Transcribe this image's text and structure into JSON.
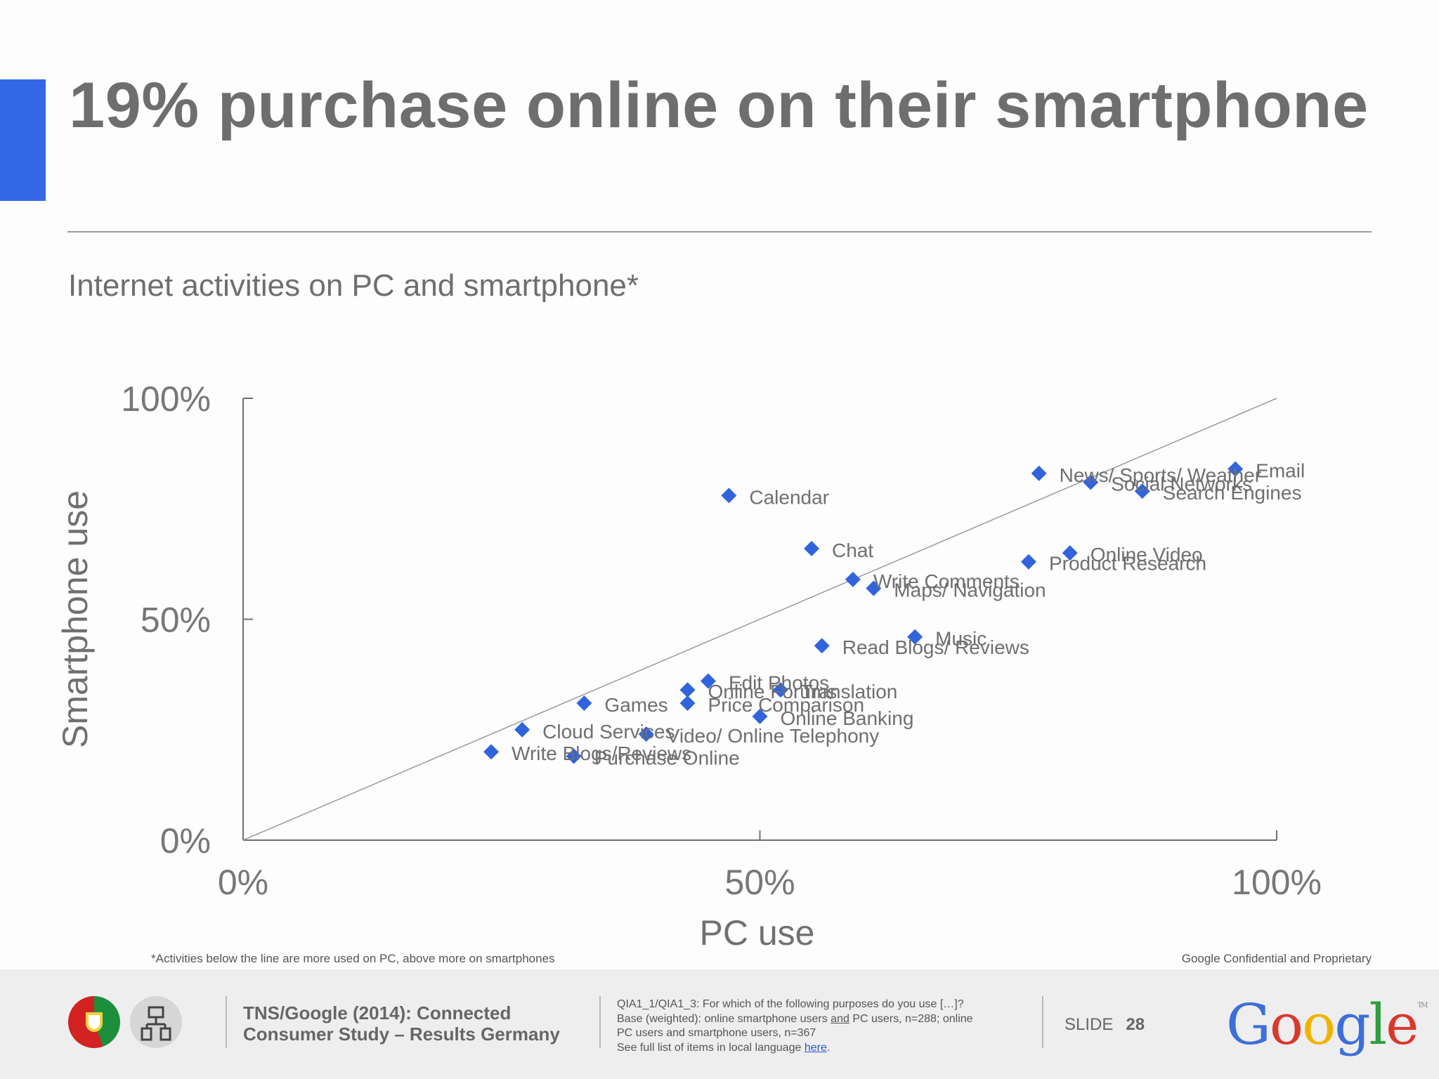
{
  "title": "19% purchase online on their smartphone",
  "subtitle": "Internet activities on PC and smartphone*",
  "footnote": "*Activities below the line are more used on PC, above more on smartphones",
  "confidential": "Google Confidential and Proprietary",
  "footer": {
    "source_line1": "TNS/Google (2014): Connected",
    "source_line2": "Consumer Study – Results Germany",
    "base_line1": "QIA1_1/QIA1_3: For which of the following purposes do you use […]?",
    "base_line2_prefix": "Base (weighted): online smartphone users ",
    "base_line2_underlined": "and",
    "base_line2_suffix": " PC users, n=288; online",
    "base_line3": "PC users and smartphone users, n=367",
    "base_line4_prefix": "See full list of items in local language ",
    "base_link": "here",
    "base_line4_suffix": ".",
    "slide_label": "SLIDE",
    "slide_number": "28",
    "logo_letters": [
      "G",
      "o",
      "o",
      "g",
      "l",
      "e"
    ],
    "logo_colors": [
      "#3c6fd8",
      "#d9392b",
      "#f0b400",
      "#3c6fd8",
      "#2f9e3f",
      "#d9392b"
    ],
    "logo_tm": "TM"
  },
  "chart_data": {
    "type": "scatter",
    "xlabel": "PC use",
    "ylabel": "Smartphone use",
    "xlim": [
      0,
      100
    ],
    "ylim": [
      0,
      100
    ],
    "x_ticks": [
      "0%",
      "50%",
      "100%"
    ],
    "y_ticks": [
      "0%",
      "50%",
      "100%"
    ],
    "reference_line": "diagonal",
    "marker_color": "#3164dc",
    "points": [
      {
        "label": "Email",
        "x": 96,
        "y": 84
      },
      {
        "label": "News/ Sports/ Weather",
        "x": 77,
        "y": 83
      },
      {
        "label": "Social Networks",
        "x": 82,
        "y": 81
      },
      {
        "label": "Search Engines",
        "x": 87,
        "y": 79
      },
      {
        "label": "Calendar",
        "x": 47,
        "y": 78
      },
      {
        "label": "Chat",
        "x": 55,
        "y": 66
      },
      {
        "label": "Online Video",
        "x": 80,
        "y": 65
      },
      {
        "label": "Product Research",
        "x": 76,
        "y": 63
      },
      {
        "label": "Maps/ Navigation",
        "x": 61,
        "y": 57
      },
      {
        "label": "Write Comments",
        "x": 59,
        "y": 59
      },
      {
        "label": "Music",
        "x": 65,
        "y": 46
      },
      {
        "label": "Read Blogs/ Reviews",
        "x": 56,
        "y": 44
      },
      {
        "label": "Edit Photos",
        "x": 45,
        "y": 36
      },
      {
        "label": "Online Forums",
        "x": 43,
        "y": 34
      },
      {
        "label": "Translation",
        "x": 52,
        "y": 34
      },
      {
        "label": "Price Comparison",
        "x": 43,
        "y": 31
      },
      {
        "label": "Games",
        "x": 33,
        "y": 31
      },
      {
        "label": "Online Banking",
        "x": 50,
        "y": 28
      },
      {
        "label": "Video/ Online Telephony",
        "x": 39,
        "y": 24
      },
      {
        "label": "Cloud Services",
        "x": 27,
        "y": 25
      },
      {
        "label": "Write Blogs/Reviews",
        "x": 24,
        "y": 20
      },
      {
        "label": "Purchase Online",
        "x": 32,
        "y": 19
      }
    ]
  }
}
